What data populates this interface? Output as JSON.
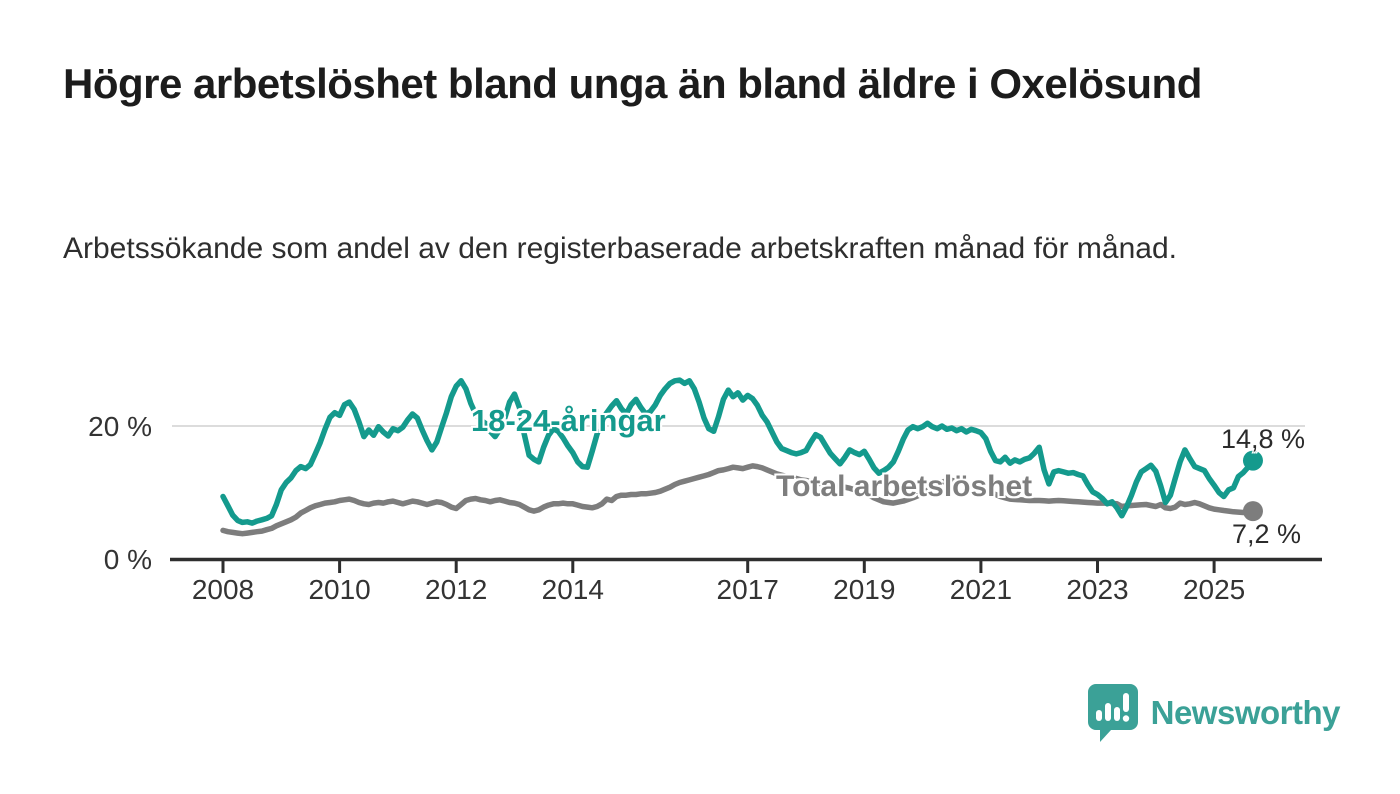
{
  "chart_data": {
    "type": "line",
    "title": "Högre arbetslöshet bland unga än bland äldre i Oxelösund",
    "subtitle": "Arbetssökande som andel av den registerbaserade arbetskraften månad för månad.",
    "unit": "%",
    "x_axis": {
      "ticks": [
        2008,
        2010,
        2012,
        2014,
        2017,
        2019,
        2021,
        2023,
        2025
      ],
      "range_years": [
        2007.1,
        2026.85
      ]
    },
    "y_axis": {
      "ticks": [
        {
          "value": 0,
          "label": "0 %"
        },
        {
          "value": 20,
          "label": "20 %"
        }
      ],
      "gridlines": [
        20
      ],
      "range": [
        0,
        28
      ]
    },
    "legend_position": "inline-labels",
    "series": [
      {
        "name": "18-24-åringar",
        "color": "#149a8d",
        "end_label": "14,8 %",
        "end_value": 14.8,
        "start_year": 2008,
        "step_months": 1,
        "values": [
          9.4,
          8.0,
          6.6,
          5.8,
          5.5,
          5.6,
          5.4,
          5.7,
          5.9,
          6.1,
          6.5,
          8.2,
          10.4,
          11.5,
          12.2,
          13.3,
          13.9,
          13.6,
          14.2,
          15.8,
          17.5,
          19.5,
          21.3,
          22.0,
          21.6,
          23.2,
          23.6,
          22.5,
          20.6,
          18.4,
          19.4,
          18.6,
          19.9,
          19.1,
          18.5,
          19.6,
          19.3,
          19.8,
          20.9,
          21.8,
          21.2,
          19.4,
          17.8,
          16.4,
          17.6,
          19.8,
          22.0,
          24.4,
          26.0,
          26.8,
          25.6,
          23.4,
          21.8,
          20.9,
          20.4,
          19.2,
          18.4,
          19.5,
          21.2,
          23.6,
          24.8,
          22.8,
          18.8,
          15.6,
          15.0,
          14.6,
          16.8,
          18.6,
          19.6,
          19.2,
          18.2,
          17.0,
          16.0,
          14.6,
          13.9,
          13.8,
          16.2,
          18.8,
          20.8,
          22.0,
          23.0,
          23.8,
          22.6,
          21.8,
          23.2,
          24.0,
          22.8,
          21.8,
          22.2,
          23.2,
          24.6,
          25.6,
          26.4,
          26.8,
          26.9,
          26.4,
          26.8,
          25.6,
          23.6,
          21.2,
          19.6,
          19.2,
          21.4,
          24.0,
          25.4,
          24.4,
          25.0,
          23.9,
          24.6,
          24.1,
          23.1,
          21.6,
          20.6,
          19.1,
          17.6,
          16.6,
          16.3,
          16.0,
          15.8,
          16.0,
          16.3,
          17.6,
          18.7,
          18.3,
          17.1,
          15.9,
          15.1,
          14.3,
          15.3,
          16.4,
          16.0,
          15.7,
          16.2,
          15.0,
          13.7,
          12.9,
          13.3,
          13.8,
          14.6,
          16.2,
          18.0,
          19.4,
          19.9,
          19.6,
          19.9,
          20.4,
          19.9,
          19.6,
          20.0,
          19.5,
          19.7,
          19.3,
          19.6,
          19.1,
          19.5,
          19.3,
          19.0,
          18.1,
          16.2,
          14.8,
          14.6,
          15.3,
          14.4,
          14.9,
          14.6,
          15.0,
          15.2,
          15.9,
          16.8,
          13.4,
          11.3,
          13.1,
          13.3,
          13.1,
          12.9,
          13.0,
          12.7,
          12.5,
          11.2,
          10.1,
          9.7,
          9.1,
          8.3,
          8.6,
          7.7,
          6.5,
          7.9,
          9.6,
          11.6,
          13.1,
          13.6,
          14.1,
          13.2,
          11.0,
          8.5,
          9.6,
          12.1,
          14.6,
          16.4,
          15.1,
          13.9,
          13.6,
          13.3,
          12.1,
          11.1,
          10.0,
          9.4,
          10.4,
          10.7,
          12.4,
          13.0,
          13.8,
          14.8
        ]
      },
      {
        "name": "Total arbetslöshet",
        "color": "#7d7d7d",
        "end_label": "7,2 %",
        "end_value": 7.2,
        "start_year": 2008,
        "step_months": 1,
        "values": [
          4.3,
          4.1,
          4.0,
          3.9,
          3.8,
          3.9,
          4.0,
          4.1,
          4.2,
          4.4,
          4.6,
          5.0,
          5.3,
          5.6,
          5.9,
          6.3,
          6.9,
          7.3,
          7.7,
          8.0,
          8.2,
          8.4,
          8.5,
          8.6,
          8.8,
          8.9,
          9.0,
          8.8,
          8.5,
          8.3,
          8.2,
          8.4,
          8.5,
          8.4,
          8.6,
          8.7,
          8.5,
          8.3,
          8.5,
          8.7,
          8.6,
          8.4,
          8.2,
          8.4,
          8.6,
          8.5,
          8.2,
          7.8,
          7.6,
          8.2,
          8.8,
          9.0,
          9.1,
          8.9,
          8.8,
          8.6,
          8.8,
          8.9,
          8.7,
          8.5,
          8.4,
          8.2,
          7.8,
          7.4,
          7.2,
          7.4,
          7.8,
          8.1,
          8.3,
          8.3,
          8.4,
          8.3,
          8.3,
          8.1,
          7.9,
          7.8,
          7.7,
          7.9,
          8.3,
          9.0,
          8.8,
          9.4,
          9.6,
          9.6,
          9.7,
          9.7,
          9.8,
          9.8,
          9.9,
          10.0,
          10.2,
          10.5,
          10.8,
          11.2,
          11.5,
          11.7,
          11.9,
          12.1,
          12.3,
          12.5,
          12.7,
          13.0,
          13.3,
          13.4,
          13.6,
          13.8,
          13.7,
          13.6,
          13.8,
          14.0,
          13.9,
          13.7,
          13.4,
          13.1,
          12.8,
          12.6,
          12.4,
          12.3,
          12.1,
          11.9,
          11.8,
          11.65,
          11.5,
          11.35,
          11.2,
          11.1,
          11.0,
          10.9,
          10.8,
          10.65,
          10.4,
          10.2,
          10.0,
          9.6,
          9.2,
          8.9,
          8.6,
          8.5,
          8.4,
          8.55,
          8.7,
          8.95,
          9.2,
          9.5,
          9.8,
          10.3,
          10.8,
          11.2,
          11.6,
          11.7,
          11.8,
          11.65,
          11.5,
          11.25,
          11.0,
          10.8,
          10.6,
          10.3,
          10.0,
          9.7,
          9.4,
          9.2,
          9.0,
          8.95,
          8.9,
          8.85,
          8.8,
          8.8,
          8.8,
          8.75,
          8.7,
          8.75,
          8.8,
          8.75,
          8.7,
          8.65,
          8.6,
          8.55,
          8.5,
          8.45,
          8.4,
          8.4,
          8.4,
          8.35,
          8.3,
          7.9,
          8.0,
          8.05,
          8.1,
          8.15,
          8.2,
          8.05,
          7.9,
          8.2,
          7.7,
          7.6,
          7.8,
          8.4,
          8.2,
          8.3,
          8.5,
          8.3,
          8.0,
          7.7,
          7.5,
          7.4,
          7.3,
          7.2,
          7.1,
          7.05,
          7.0,
          7.1,
          7.2
        ]
      }
    ]
  },
  "colors": {
    "accent_teal": "#149a8d",
    "line_gray": "#7d7d7d",
    "axis": "#2e2e2e",
    "gridline": "#dcdcdc",
    "text": "#1c1c1c",
    "logo_teal": "#3ba197"
  },
  "branding": {
    "logo_text": "Newsworthy",
    "logo_icon": "bar-chart-speech-bubble-icon"
  }
}
